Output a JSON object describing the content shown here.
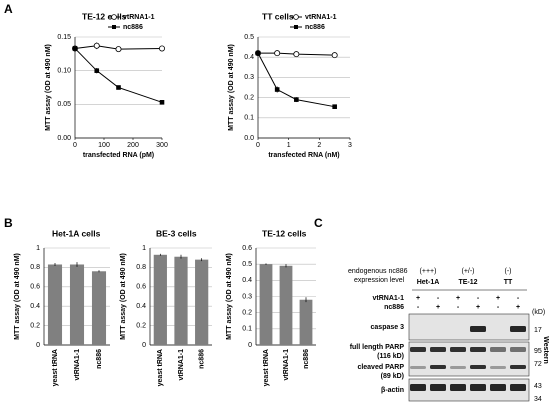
{
  "panel_labels": [
    "A",
    "B",
    "C"
  ],
  "chart_data": [
    {
      "type": "line",
      "title": "TE-12 cells",
      "xlabel": "transfected RNA (pM)",
      "ylabel": "MTT assay (OD at 490 nM)",
      "x": [
        0,
        75,
        150,
        300
      ],
      "series": [
        {
          "name": "vtRNA1-1",
          "color": "#000000",
          "marker": "circle-open",
          "values": [
            0.133,
            0.137,
            0.132,
            0.133
          ],
          "errors": [
            0.002,
            0.005,
            0.002,
            0.003
          ]
        },
        {
          "name": "nc886",
          "color": "#000000",
          "marker": "square-filled",
          "values": [
            0.133,
            0.1,
            0.075,
            0.053
          ],
          "errors": [
            0.002,
            0.004,
            0.003,
            0.002
          ]
        }
      ],
      "xlim": [
        0,
        300
      ],
      "xticks": [
        0,
        100,
        200,
        300
      ],
      "ylim": [
        0,
        0.15
      ],
      "yticks": [
        {
          "value": 0,
          "label": "0.00"
        },
        0.05,
        {
          "value": 0.1,
          "label": "0.10"
        },
        {
          "value": 0.15,
          "label": "0.15"
        }
      ],
      "grid": true,
      "legend": "top-right"
    },
    {
      "type": "line",
      "title": "TT cells",
      "xlabel": "transfected RNA (nM)",
      "ylabel": "MTT assay (OD at 490 nM)",
      "x": [
        0,
        0.625,
        1.25,
        2.5
      ],
      "series": [
        {
          "name": "vtRNA1-1",
          "color": "#000000",
          "marker": "circle-open",
          "values": [
            0.42,
            0.42,
            0.415,
            0.41
          ],
          "errors": [
            0.005,
            0.006,
            0.005,
            0.01
          ]
        },
        {
          "name": "nc886",
          "color": "#000000",
          "marker": "square-filled",
          "values": [
            0.42,
            0.24,
            0.19,
            0.155
          ],
          "errors": [
            0.005,
            0.015,
            0.012,
            0.006
          ]
        }
      ],
      "xlim": [
        0,
        3
      ],
      "xticks": [
        0,
        1,
        2,
        3
      ],
      "ylim": [
        0,
        0.5
      ],
      "yticks": [
        {
          "value": 0,
          "label": "0.0"
        },
        0.1,
        0.2,
        0.3,
        0.4,
        0.5
      ],
      "grid": true,
      "legend": "top-right"
    },
    {
      "type": "bar",
      "title": "Het-1A cells",
      "ylabel": "MTT assay (OD at 490 nM)",
      "categories": [
        "yeast tRNA",
        "vtRNA1-1",
        "nc886"
      ],
      "values": [
        0.83,
        0.83,
        0.76
      ],
      "errors": [
        0.015,
        0.025,
        0.01
      ],
      "color": "#808080",
      "ylim": [
        0,
        1
      ],
      "yticks": [
        0,
        0.2,
        0.4,
        0.6,
        0.8,
        1
      ],
      "grid": true
    },
    {
      "type": "bar",
      "title": "BE-3 cells",
      "ylabel": "MTT assay (OD at 490 nM)",
      "categories": [
        "yeast tRNA",
        "vtRNA1-1",
        "nc886"
      ],
      "values": [
        0.93,
        0.91,
        0.88
      ],
      "errors": [
        0.01,
        0.02,
        0.015
      ],
      "color": "#808080",
      "ylim": [
        0,
        1
      ],
      "yticks": [
        0,
        0.2,
        0.4,
        0.6,
        0.8,
        1
      ],
      "grid": true
    },
    {
      "type": "bar",
      "title": "TE-12 cells",
      "ylabel": "MTT assay (OD at 490 nM)",
      "categories": [
        "yeast tRNA",
        "vtRNA1-1",
        "nc886"
      ],
      "values": [
        0.5,
        0.49,
        0.28
      ],
      "errors": [
        0.005,
        0.01,
        0.015
      ],
      "color": "#808080",
      "ylim": [
        0,
        0.6
      ],
      "yticks": [
        0,
        0.1,
        0.2,
        0.3,
        0.4,
        0.5,
        0.6
      ],
      "grid": true
    }
  ],
  "blot": {
    "expression_label": [
      "endogenous nc886",
      "expression level"
    ],
    "levels": [
      "(+++)",
      "(+/-)",
      "(-)"
    ],
    "cell_lines": [
      "Het-1A",
      "TE-12",
      "TT"
    ],
    "rows": [
      {
        "label": "vtRNA1-1",
        "signs": [
          "+",
          "-",
          "+",
          "-",
          "+",
          "-"
        ]
      },
      {
        "label": "nc886",
        "signs": [
          "-",
          "+",
          "-",
          "+",
          "-",
          "+"
        ]
      }
    ],
    "bands": [
      [
        "caspase 3"
      ],
      [
        "full length PARP",
        "(116 kD)"
      ],
      [
        "cleaved PARP",
        "(89 kD)"
      ],
      [
        "β-actin"
      ]
    ],
    "marker_unit": "(kD)",
    "markers": [
      "17",
      "95",
      "72",
      "43",
      "34"
    ],
    "method": "Western"
  }
}
